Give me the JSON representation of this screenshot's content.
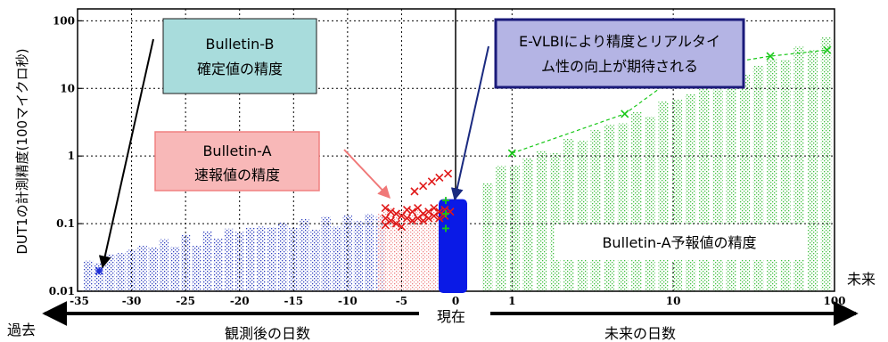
{
  "chart_data": {
    "type": "scatter",
    "title": "",
    "ylabel": "DUT1の計測精度(100マイクロ秒)",
    "yscale": "log",
    "ylim": [
      0.01,
      150
    ],
    "y_ticks": [
      "0.01",
      "0.1",
      "1",
      "10",
      "100"
    ],
    "past_x_ticks": [
      "-35",
      "-30",
      "-25",
      "-20",
      "-15",
      "-10",
      "-5",
      "0"
    ],
    "future_x_ticks": [
      "1",
      "10",
      "100"
    ],
    "past_axis_label": "観測後の日数",
    "future_axis_label": "未来の日数",
    "label_past": "過去",
    "label_now": "現在",
    "label_future": "未来",
    "series": [
      {
        "name": "Bulletin-B 確定値の精度",
        "marker": "asterisk",
        "color": "#1f2fd6",
        "points": [
          {
            "x": -33,
            "y": 0.02
          }
        ]
      },
      {
        "name": "Bulletin-A 速報値の精度",
        "marker": "x",
        "color": "#e01818",
        "points": [
          {
            "x": -6.5,
            "y": 0.17
          },
          {
            "x": -6.5,
            "y": 0.12
          },
          {
            "x": -6.5,
            "y": 0.095
          },
          {
            "x": -6.0,
            "y": 0.15
          },
          {
            "x": -6.0,
            "y": 0.11
          },
          {
            "x": -5.5,
            "y": 0.14
          },
          {
            "x": -5.5,
            "y": 0.1
          },
          {
            "x": -5.0,
            "y": 0.13
          },
          {
            "x": -5.0,
            "y": 0.09
          },
          {
            "x": -4.5,
            "y": 0.16
          },
          {
            "x": -4.5,
            "y": 0.12
          },
          {
            "x": -4.0,
            "y": 0.15
          },
          {
            "x": -4.0,
            "y": 0.11
          },
          {
            "x": -3.5,
            "y": 0.17
          },
          {
            "x": -3.5,
            "y": 0.12
          },
          {
            "x": -3.0,
            "y": 0.14
          },
          {
            "x": -3.0,
            "y": 0.11
          },
          {
            "x": -2.5,
            "y": 0.15
          },
          {
            "x": -2.5,
            "y": 0.12
          },
          {
            "x": -2.0,
            "y": 0.17
          },
          {
            "x": -2.0,
            "y": 0.13
          },
          {
            "x": -1.5,
            "y": 0.15
          },
          {
            "x": -1.5,
            "y": 0.12
          },
          {
            "x": -1.0,
            "y": 0.16
          },
          {
            "x": -1.0,
            "y": 0.13
          },
          {
            "x": -0.5,
            "y": 0.15
          },
          {
            "x": -3.8,
            "y": 0.3
          },
          {
            "x": -3.0,
            "y": 0.36
          },
          {
            "x": -2.2,
            "y": 0.42
          },
          {
            "x": -1.5,
            "y": 0.48
          },
          {
            "x": -0.7,
            "y": 0.55
          }
        ]
      },
      {
        "name": "E-VLBI",
        "marker": "plus",
        "color": "#18c818",
        "points": [
          {
            "x": 0.1,
            "y": 0.22
          },
          {
            "x": 0.1,
            "y": 0.14
          },
          {
            "x": 0.1,
            "y": 0.085
          }
        ]
      },
      {
        "name": "Bulletin-A予報値の精度",
        "marker": "x",
        "color": "#18c818",
        "line": true,
        "points": [
          {
            "x": 1,
            "y": 1.1
          },
          {
            "x": 5,
            "y": 4.2
          },
          {
            "x": 10,
            "y": 14
          },
          {
            "x": 20,
            "y": 23
          },
          {
            "x": 40,
            "y": 30
          },
          {
            "x": 90,
            "y": 37
          }
        ]
      }
    ],
    "annotations": [
      {
        "id": "bulletin-b",
        "lines": [
          "Bulletin-B",
          "確定値の精度"
        ]
      },
      {
        "id": "bulletin-a",
        "lines": [
          "Bulletin-A",
          "速報値の精度"
        ]
      },
      {
        "id": "evlbi",
        "lines": [
          "E-VLBIにより精度とリアルタイ",
          "ム性の向上が期待される"
        ]
      },
      {
        "id": "forecast",
        "lines": [
          "Bulletin-A予報値の精度"
        ]
      }
    ]
  },
  "colors": {
    "past_hatch": "#3040c0",
    "bulletin_a_hatch": "#ee8080",
    "future_hatch": "#40c040",
    "evlbi_bar": "#0a1ae6",
    "box_b_fill": "#a8dcdc",
    "box_a_fill": "#f8b8b8",
    "box_a_border": "#f08080",
    "box_e_fill": "#b4b4e4",
    "box_e_border": "#1a1a7a"
  }
}
